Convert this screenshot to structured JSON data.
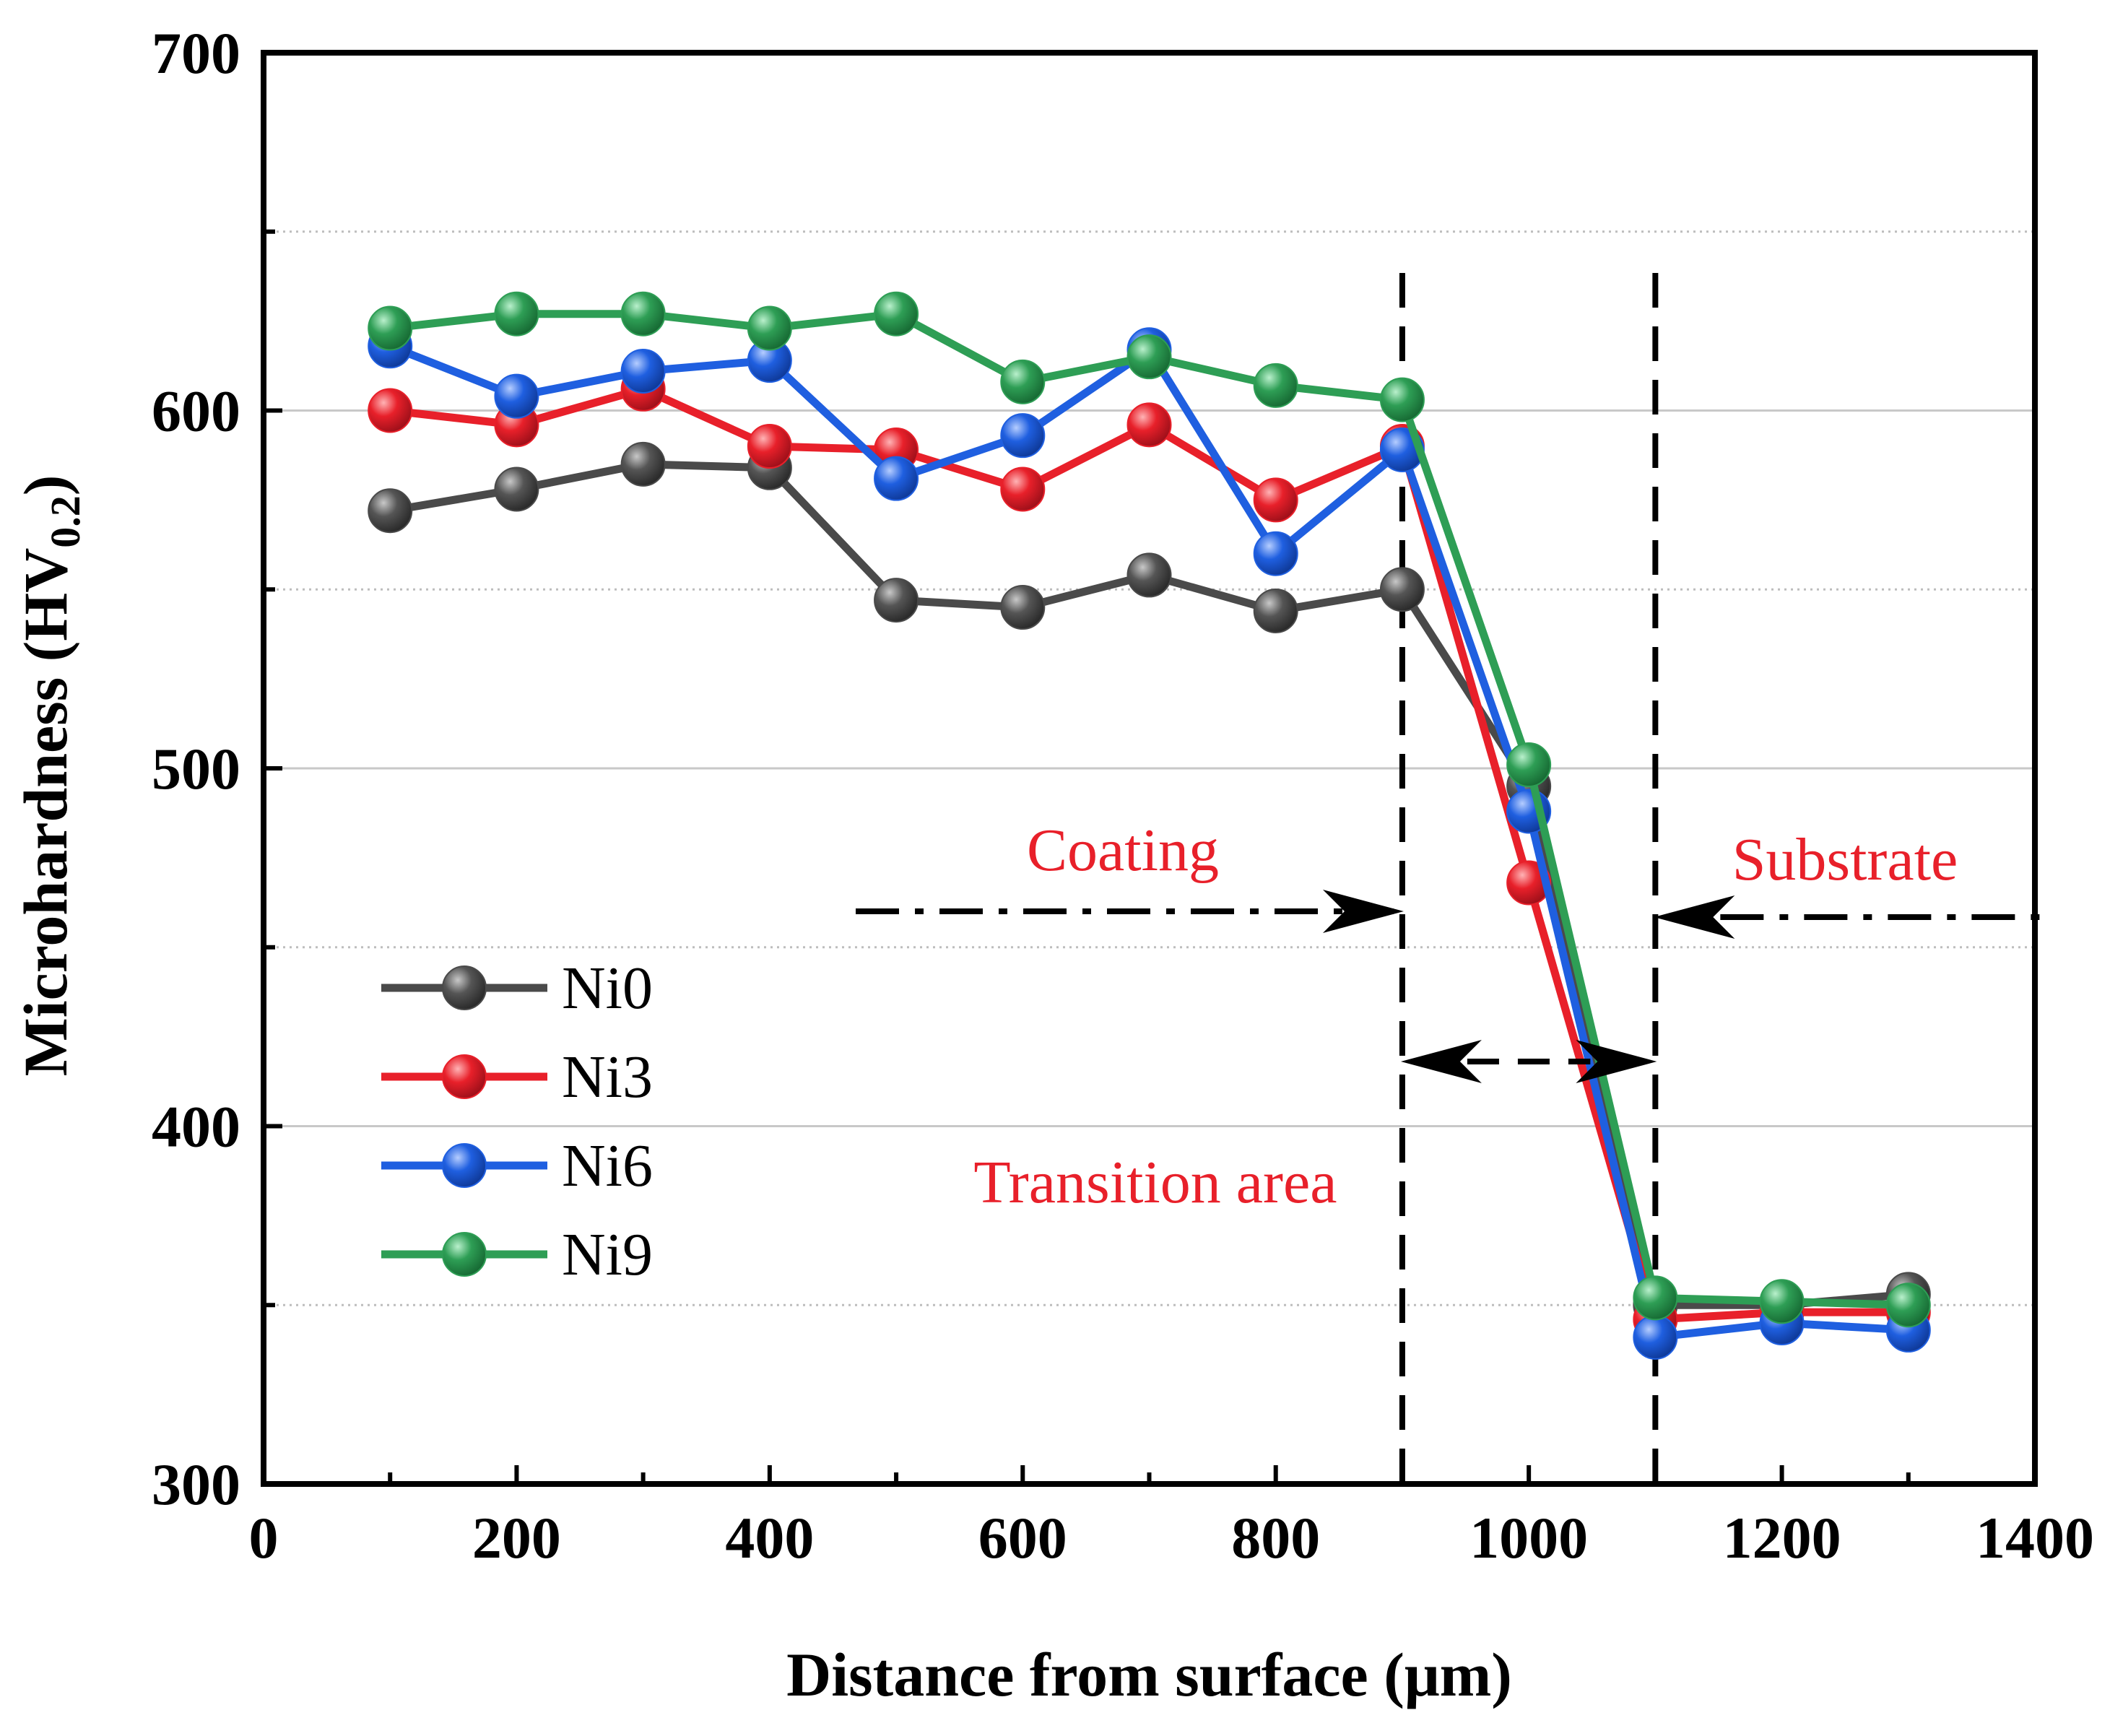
{
  "chart_data": {
    "type": "line",
    "xlabel": "Distance from surface (μm)",
    "ylabel": "Microhardness (HV",
    "ylabel_sub": "0.2",
    "ylabel_end": ")",
    "xlim": [
      0,
      1400
    ],
    "ylim": [
      300,
      700
    ],
    "xticks": [
      0,
      200,
      400,
      600,
      800,
      1000,
      1200,
      1400
    ],
    "yticks": [
      300,
      400,
      500,
      600,
      700
    ],
    "grid": true,
    "legend_position": "bottom-left",
    "x": [
      100,
      200,
      300,
      400,
      500,
      600,
      700,
      800,
      900,
      1000,
      1100,
      1200,
      1300
    ],
    "series": [
      {
        "name": "Ni0",
        "color": "#4a4a4a",
        "values": [
          572,
          578,
          585,
          584,
          547,
          545,
          554,
          544,
          550,
          495,
          350,
          350,
          353
        ]
      },
      {
        "name": "Ni3",
        "color": "#e8202a",
        "values": [
          600,
          596,
          606,
          590,
          589,
          578,
          596,
          575,
          590,
          468,
          346,
          348,
          348
        ]
      },
      {
        "name": "Ni6",
        "color": "#1f5fe0",
        "values": [
          618,
          604,
          611,
          614,
          581,
          593,
          617,
          560,
          589,
          488,
          341,
          345,
          343
        ]
      },
      {
        "name": "Ni9",
        "color": "#2e9e55",
        "values": [
          623,
          627,
          627,
          623,
          627,
          608,
          615,
          607,
          603,
          501,
          352,
          351,
          350
        ]
      }
    ],
    "annotations": {
      "coating": "Coating",
      "substrate": "Substrate",
      "transition": "Transition area"
    },
    "boundaries_x": [
      900,
      1100
    ]
  }
}
